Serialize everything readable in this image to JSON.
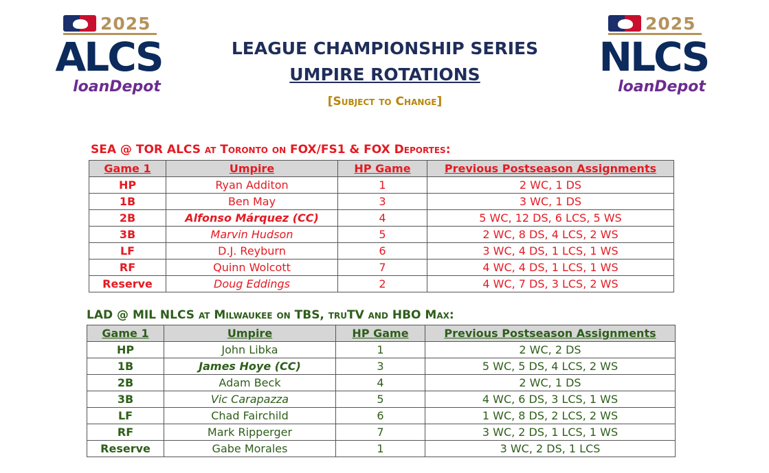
{
  "logos": {
    "alcs": {
      "year": "2025",
      "series": "ALCS",
      "sponsor": "loanDepot"
    },
    "nlcs": {
      "year": "2025",
      "series": "NLCS",
      "sponsor": "loanDepot"
    }
  },
  "header": {
    "title": "LEAGUE CHAMPIONSHIP SERIES",
    "subtitle": "UMPIRE ROTATIONS",
    "note": "[Subject to Change]"
  },
  "colors": {
    "alcs_text": "#e31b23",
    "nlcs_text": "#2e5e1a",
    "title_navy": "#1f2d5a",
    "note_gold": "#b8860b"
  },
  "alcs": {
    "title": "SEA @ TOR ALCS at Toronto on FOX/FS1 & FOX Deportes:",
    "headers": [
      "Game 1",
      "Umpire",
      "HP Game",
      "Previous Postseason Assignments"
    ],
    "rows": [
      {
        "pos": "HP",
        "umpire": "Ryan Additon",
        "style": "normal",
        "hp": "1",
        "prev": "2 WC, 1 DS"
      },
      {
        "pos": "1B",
        "umpire": "Ben May",
        "style": "normal",
        "hp": "3",
        "prev": "3 WC, 1 DS"
      },
      {
        "pos": "2B",
        "umpire": "Alfonso Márquez (CC)",
        "style": "cc",
        "hp": "4",
        "prev": "5 WC, 12 DS, 6 LCS, 5 WS"
      },
      {
        "pos": "3B",
        "umpire": "Marvin Hudson",
        "style": "italic",
        "hp": "5",
        "prev": "2 WC, 8 DS, 4 LCS, 2 WS"
      },
      {
        "pos": "LF",
        "umpire": "D.J. Reyburn",
        "style": "normal",
        "hp": "6",
        "prev": "3 WC, 4 DS, 1 LCS, 1 WS"
      },
      {
        "pos": "RF",
        "umpire": "Quinn Wolcott",
        "style": "normal",
        "hp": "7",
        "prev": "4 WC, 4 DS, 1 LCS, 1 WS"
      },
      {
        "pos": "Reserve",
        "umpire": "Doug Eddings",
        "style": "italic",
        "hp": "2",
        "prev": "4 WC, 7 DS, 3 LCS, 2 WS"
      }
    ]
  },
  "nlcs": {
    "title": "LAD @ MIL NLCS at  Milwaukee on TBS, truTV and HBO Max:",
    "headers": [
      "Game 1",
      "Umpire",
      "HP Game",
      "Previous Postseason Assignments"
    ],
    "rows": [
      {
        "pos": "HP",
        "umpire": "John Libka",
        "style": "normal",
        "hp": "1",
        "prev": "2 WC, 2 DS"
      },
      {
        "pos": "1B",
        "umpire": "James Hoye (CC)",
        "style": "cc",
        "hp": "3",
        "prev": "5 WC, 5 DS, 4 LCS, 2 WS"
      },
      {
        "pos": "2B",
        "umpire": "Adam Beck",
        "style": "normal",
        "hp": "4",
        "prev": "2 WC, 1 DS"
      },
      {
        "pos": "3B",
        "umpire": "Vic Carapazza",
        "style": "italic",
        "hp": "5",
        "prev": "4 WC, 6 DS, 3 LCS, 1 WS"
      },
      {
        "pos": "LF",
        "umpire": "Chad Fairchild",
        "style": "normal",
        "hp": "6",
        "prev": "1 WC, 8 DS, 2 LCS, 2 WS"
      },
      {
        "pos": "RF",
        "umpire": "Mark Ripperger",
        "style": "normal",
        "hp": "7",
        "prev": "3 WC, 2 DS, 1 LCS, 1 WS"
      },
      {
        "pos": "Reserve",
        "umpire": "Gabe Morales",
        "style": "normal",
        "hp": "1",
        "prev": "3 WC, 2 DS, 1 LCS"
      }
    ]
  }
}
